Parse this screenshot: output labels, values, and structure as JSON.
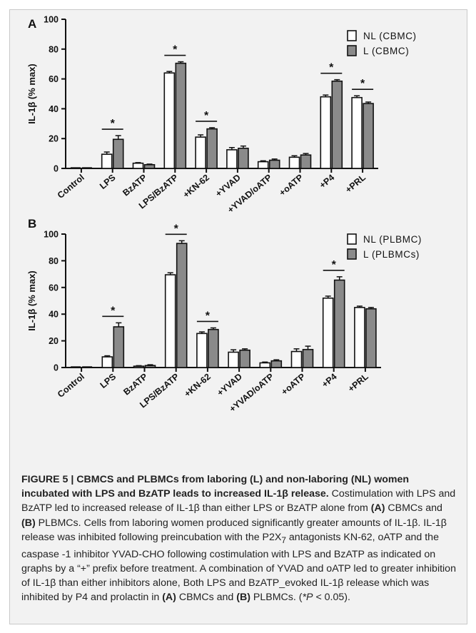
{
  "colors": {
    "nl_bar": "#ffffff",
    "l_bar": "#8a8a8a",
    "axis": "#111111",
    "background": "#f2f2f2"
  },
  "chart_data": [
    {
      "type": "bar",
      "panel_label": "A",
      "ylabel": "IL-1β (% max)",
      "ylim": [
        0,
        100
      ],
      "yticks": [
        0,
        20,
        40,
        60,
        80,
        100
      ],
      "categories": [
        "Control",
        "LPS",
        "BzATP",
        "LPS/BzATP",
        "+KN-62",
        "+YVAD",
        "+YVAD/oATP",
        "+oATP",
        "+P4",
        "+PRL"
      ],
      "series": [
        {
          "name": "NL (CBMC)",
          "values": [
            0,
            9.5,
            3.5,
            64,
            21,
            12.5,
            4.5,
            7.5,
            48,
            47.5
          ],
          "errors": [
            0,
            1.5,
            0.4,
            1,
            1.5,
            1.5,
            0.6,
            1,
            1.2,
            1.2
          ]
        },
        {
          "name": "L (CBMC)",
          "values": [
            0,
            19.5,
            2.5,
            70.5,
            26.5,
            13.5,
            5.5,
            9,
            58.5,
            43.5
          ],
          "errors": [
            0,
            2.5,
            0.4,
            1,
            0.8,
            1.5,
            0.8,
            1,
            1,
            1
          ]
        }
      ],
      "significance": [
        "",
        "*",
        "",
        "*",
        "*",
        "",
        "",
        "",
        "*",
        "*"
      ],
      "legend_position": "top-right",
      "grid": false
    },
    {
      "type": "bar",
      "panel_label": "B",
      "ylabel": "IL-1β (% max)",
      "ylim": [
        0,
        100
      ],
      "yticks": [
        0,
        20,
        40,
        60,
        80,
        100
      ],
      "categories": [
        "Control",
        "LPS",
        "BzATP",
        "LPS/BzATP",
        "+KN-62",
        "+YVAD",
        "+YVAD/oATP",
        "+oATP",
        "+P4",
        "+PRL"
      ],
      "series": [
        {
          "name": "NL (PLBMC)",
          "values": [
            0,
            8,
            1,
            69.5,
            25.5,
            11.5,
            3.5,
            12,
            52,
            45
          ],
          "errors": [
            0,
            0.8,
            0.4,
            1.5,
            1.2,
            1.8,
            0.6,
            2,
            1.5,
            1
          ]
        },
        {
          "name": "L (PLBMCs)",
          "values": [
            0,
            30.5,
            1.5,
            93,
            28.5,
            13,
            5,
            13.5,
            65.5,
            44
          ],
          "errors": [
            0,
            3,
            0.6,
            2,
            1.2,
            1,
            0.8,
            2.5,
            2.5,
            1
          ]
        }
      ],
      "significance": [
        "",
        "*",
        "",
        "*",
        "*",
        "",
        "",
        "",
        "*",
        ""
      ],
      "legend_position": "top-right",
      "grid": false
    }
  ],
  "caption": {
    "heading": "FIGURE 5 | CBMCS and PLBMCs from laboring (L) and non-laboring (NL) women incubated with LPS and BzATP leads to increased IL-1β release.",
    "s1_a": " Costimulation with LPS and BzATP led to increased release of IL-1β than either LPS or BzATP alone from ",
    "ref_a1": "(A)",
    "s1_b": " CBMCs and ",
    "ref_b1": "(B)",
    "s1_c": " PLBMCs. Cells from laboring women produced significantly greater amounts of IL-1β. IL-1β release was inhibited following preincubation with the P2X",
    "sub7": "7",
    "s1_d": " antagonists KN-62, oATP and the caspase -1 inhibitor YVAD-CHO following costimulation with LPS and BzATP as indicated on graphs by a “+” prefix before treatment. A combination of YVAD and oATP led to greater inhibition of IL-1β than either inhibitors alone, Both LPS and BzATP_evoked IL-1β release which was inhibited by P4 and prolactin in ",
    "ref_a2": "(A)",
    "s1_e": " CBMCs and ",
    "ref_b2": "(B)",
    "s1_f": " PLBMCs. (",
    "p_star": "*",
    "p_p": "P",
    "p_rest": " < 0.05)."
  }
}
